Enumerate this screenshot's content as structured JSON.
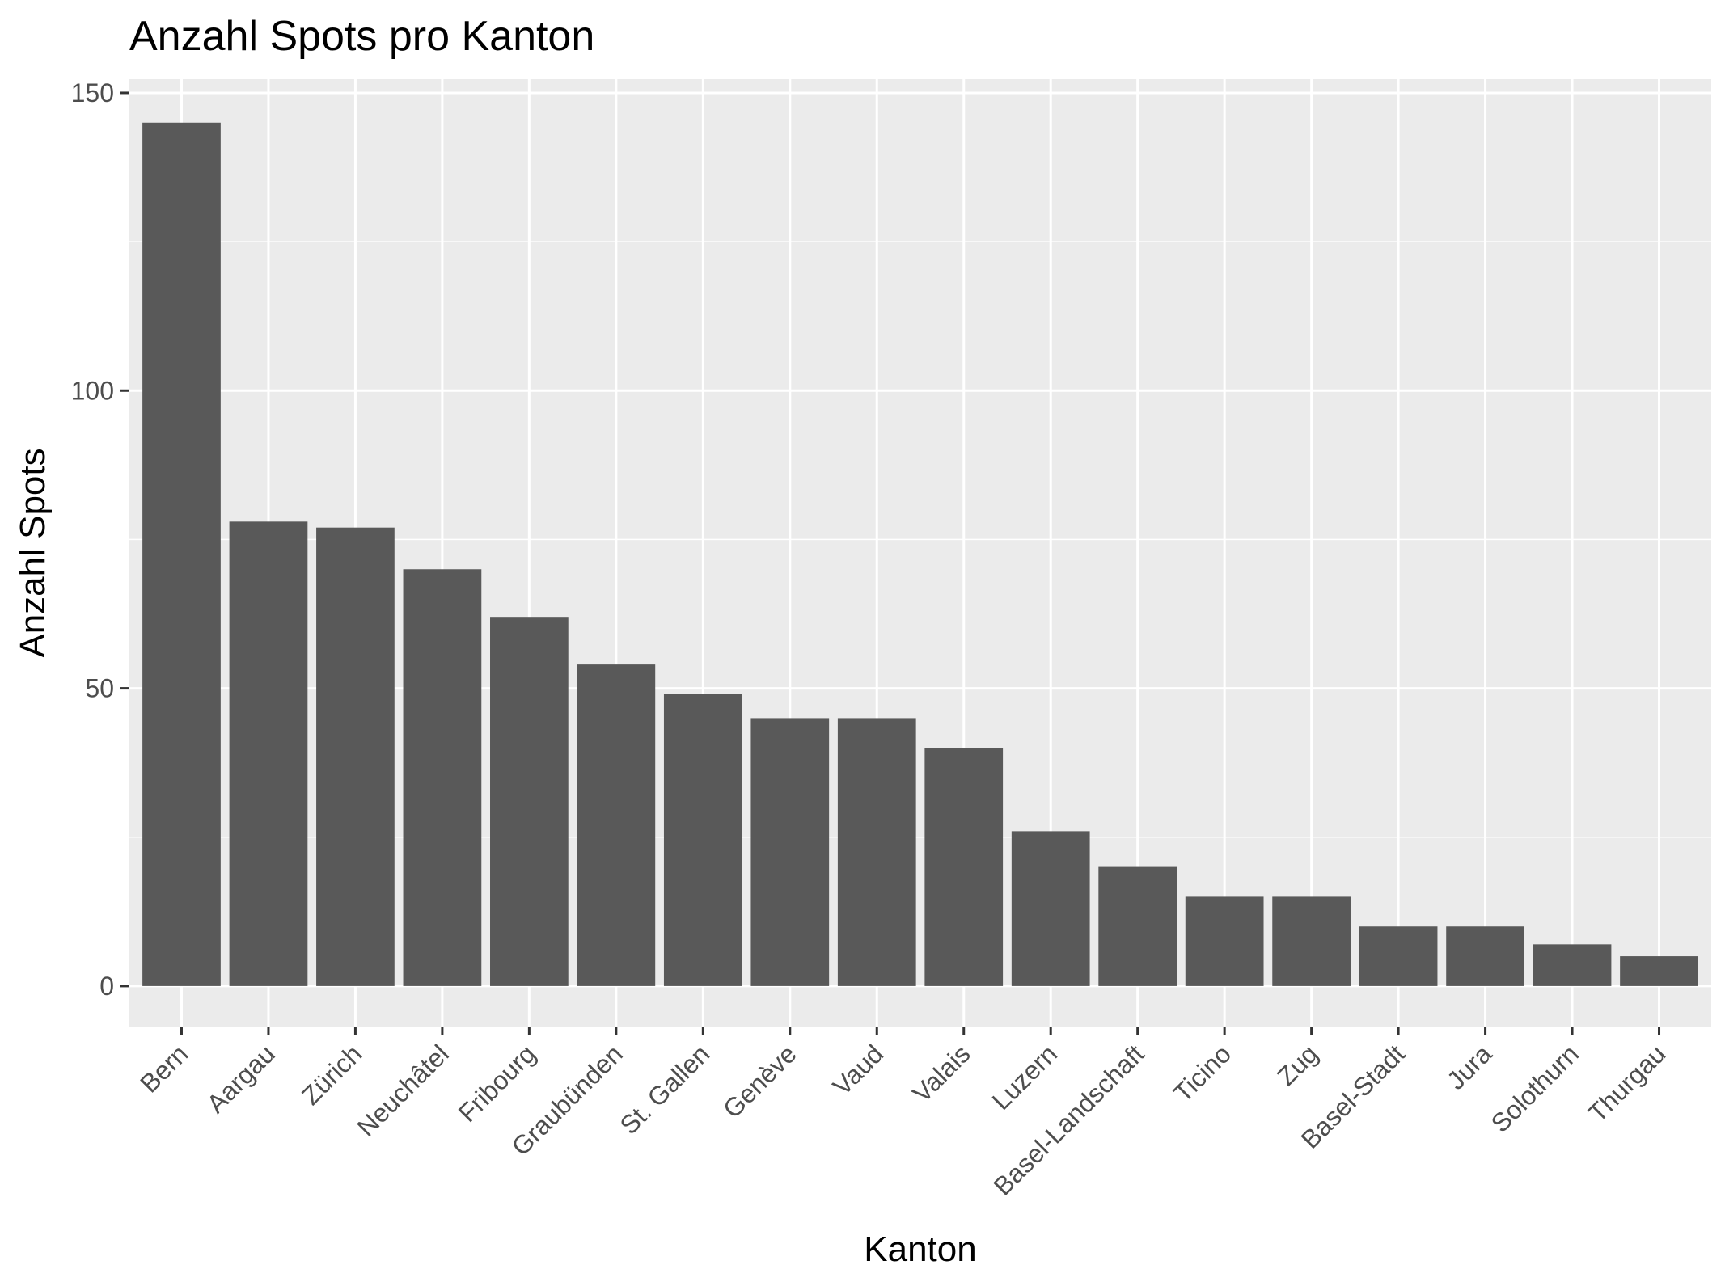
{
  "chart_data": {
    "type": "bar",
    "title": "Anzahl Spots pro Kanton",
    "xlabel": "Kanton",
    "ylabel": "Anzahl Spots",
    "categories": [
      "Bern",
      "Aargau",
      "Zürich",
      "Neuchâtel",
      "Fribourg",
      "Graubünden",
      "St. Gallen",
      "Genève",
      "Vaud",
      "Valais",
      "Luzern",
      "Basel-Landschaft",
      "Ticino",
      "Zug",
      "Basel-Stadt",
      "Jura",
      "Solothurn",
      "Thurgau"
    ],
    "values": [
      145,
      78,
      77,
      70,
      62,
      54,
      49,
      45,
      45,
      40,
      26,
      20,
      15,
      15,
      10,
      10,
      7,
      5
    ],
    "ylim": [
      -6.8,
      152.3
    ],
    "yticks": [
      0,
      50,
      100,
      150
    ],
    "grid": true,
    "colors": {
      "panel": "#ebebeb",
      "grid": "#ffffff",
      "bar": "#595959",
      "tick": "#333333"
    }
  }
}
